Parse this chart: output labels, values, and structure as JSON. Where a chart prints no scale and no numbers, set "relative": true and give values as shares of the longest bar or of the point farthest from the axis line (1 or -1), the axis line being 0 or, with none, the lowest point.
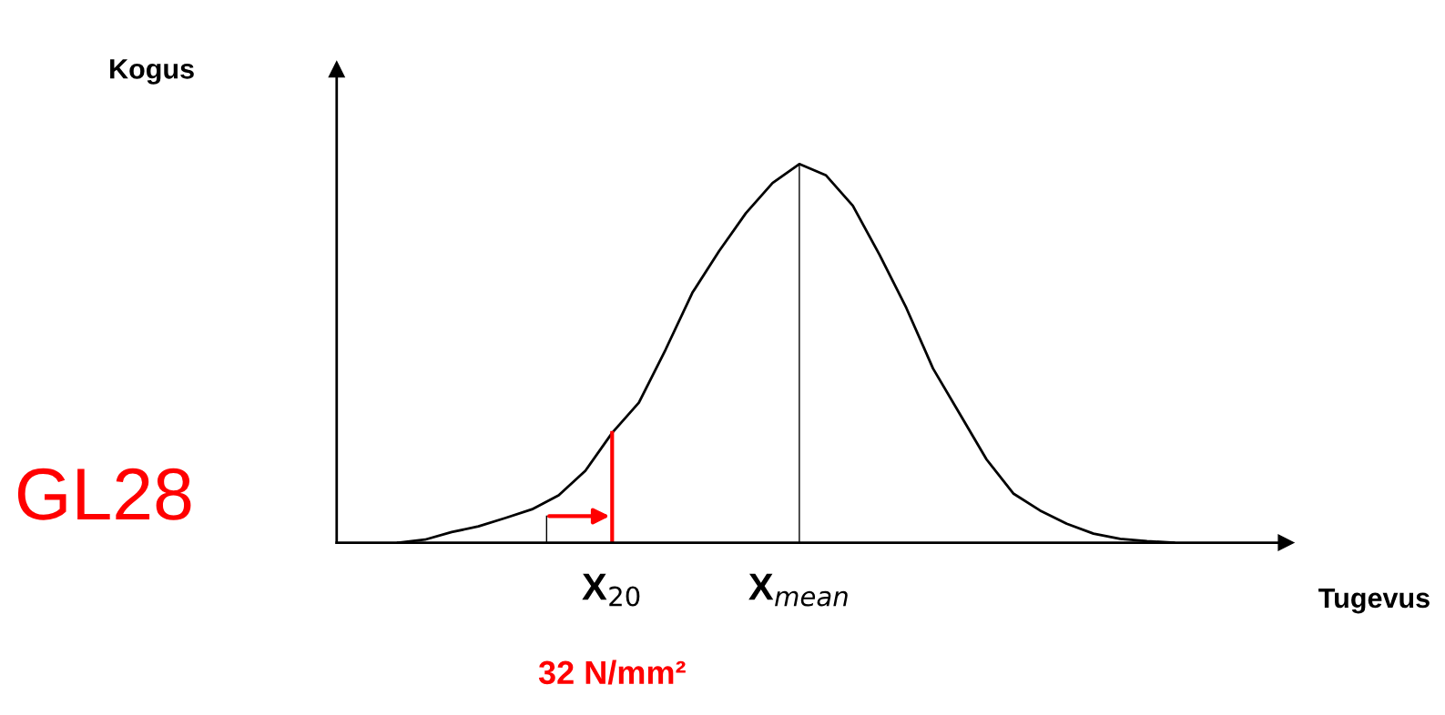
{
  "chart_data": {
    "type": "line",
    "relative": true,
    "categories": [
      null,
      null,
      null,
      null,
      null,
      null,
      null,
      null,
      "X$_{20}$",
      null,
      null,
      null,
      null,
      null,
      null,
      "X$_{mean}$",
      null,
      null,
      null,
      null,
      null,
      null,
      null,
      null,
      null,
      null,
      null,
      null,
      null,
      null
    ],
    "series": [
      {
        "color": "#000000",
        "values": [
          0,
          0.008,
          0.028,
          0.043,
          0.065,
          0.088,
          0.125,
          0.19,
          0.29,
          0.37,
          0.51,
          0.66,
          0.77,
          0.87,
          0.95,
          1.0,
          0.97,
          0.89,
          0.76,
          0.62,
          0.46,
          0.34,
          0.22,
          0.13,
          0.085,
          0.05,
          0.024,
          0.01,
          0.004,
          0
        ]
      }
    ],
    "ref_lines": [
      {
        "axis": "x",
        "value": "X$_{20}$",
        "color": "#ff0000"
      },
      {
        "axis": "x",
        "value": "X$_{mean}$",
        "color": "#000000"
      }
    ],
    "annotations": [
      "Kogus",
      "Tugevus",
      "GL28",
      "32 N/mm²"
    ],
    "marker": "none",
    "line_style": "solid",
    "legend": false
  }
}
